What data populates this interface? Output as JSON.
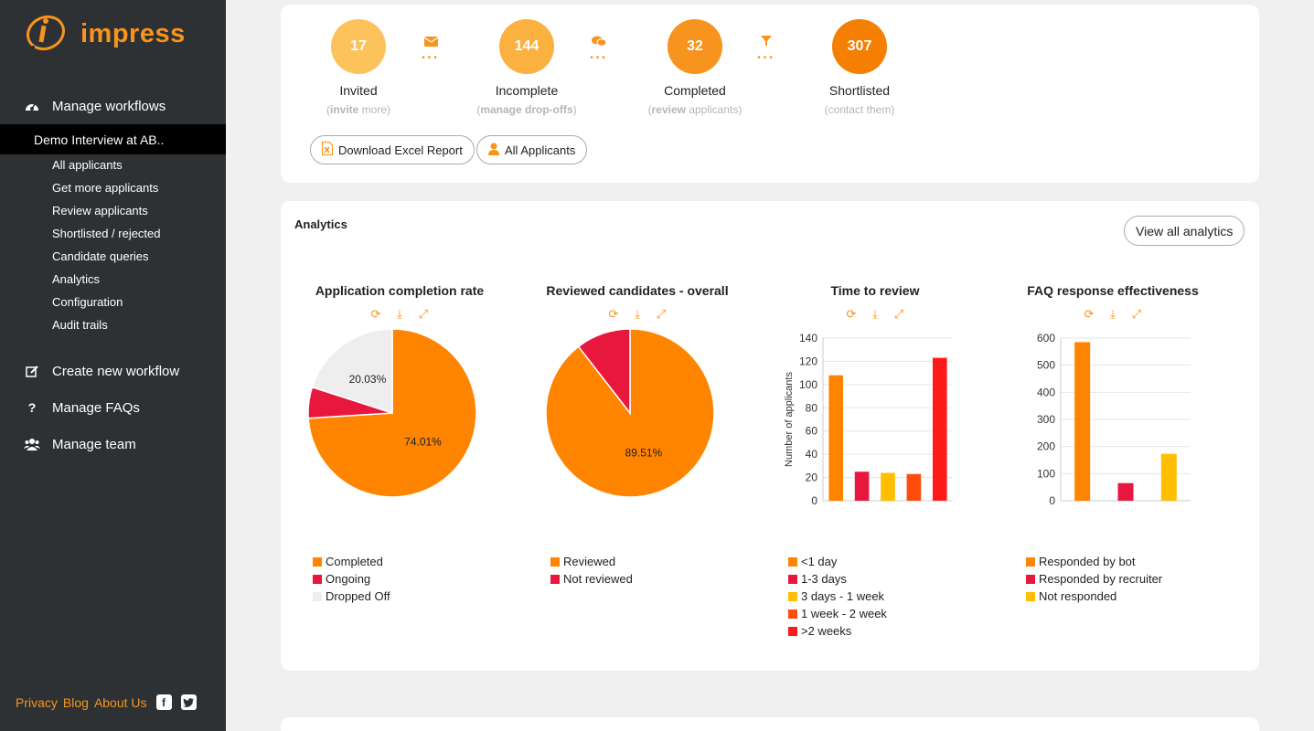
{
  "app": {
    "name": "impress"
  },
  "sidebar": {
    "manage_workflows": "Manage workflows",
    "active_workflow": "Demo Interview at AB..",
    "sub_items": [
      "All applicants",
      "Get more applicants",
      "Review applicants",
      "Shortlisted / rejected",
      "Candidate queries",
      "Analytics",
      "Configuration",
      "Audit trails"
    ],
    "create_workflow": "Create new workflow",
    "manage_faqs": "Manage FAQs",
    "manage_faqs_icon_char": "?",
    "manage_team": "Manage team",
    "footer": {
      "privacy": "Privacy",
      "blog": "Blog",
      "about": "About Us"
    }
  },
  "stats": [
    {
      "value": "17",
      "label": "Invited",
      "sub_bold": "invite",
      "sub_rest": " more",
      "color": "#fcc25b"
    },
    {
      "value": "144",
      "label": "Incomplete",
      "sub_bold": "manage drop-offs",
      "sub_rest": "",
      "color": "#fbb040"
    },
    {
      "value": "32",
      "label": "Completed",
      "sub_bold": "review",
      "sub_rest": " applicants",
      "color": "#f7941d"
    },
    {
      "value": "307",
      "label": "Shortlisted",
      "sub_bold": "",
      "sub_rest": "contact them",
      "color": "#f57f00"
    }
  ],
  "stat_separators": [
    "envelope-icon",
    "comments-icon",
    "filter-icon"
  ],
  "actions": {
    "download_report": "Download Excel Report",
    "all_applicants": "All Applicants"
  },
  "analytics": {
    "title": "Analytics",
    "view_all": "View all analytics"
  },
  "colors": {
    "orange": "#ff8400",
    "crimson": "#e8173e",
    "light_gray": "#eeeeee",
    "yellow": "#ffbf00",
    "red_orange": "#ff4c0c",
    "red": "#ff1a1a"
  },
  "chart_data": [
    {
      "type": "pie",
      "title": "Application completion rate",
      "labels": [
        "Completed",
        "Ongoing",
        "Dropped Off"
      ],
      "values": [
        74.01,
        5.96,
        20.03
      ],
      "value_labels": [
        "74.01%",
        "",
        "20.03%"
      ],
      "colors": [
        "#ff8400",
        "#e8173e",
        "#eeeeee"
      ]
    },
    {
      "type": "pie",
      "title": "Reviewed candidates - overall",
      "labels": [
        "Reviewed",
        "Not reviewed"
      ],
      "values": [
        89.51,
        10.49
      ],
      "value_labels": [
        "89.51%",
        ""
      ],
      "colors": [
        "#ff8400",
        "#e8173e"
      ]
    },
    {
      "type": "bar",
      "title": "Time to review",
      "categories": [
        "<1 day",
        "1-3 days",
        "3 days - 1 week",
        "1 week - 2 week",
        ">2 weeks"
      ],
      "values": [
        108,
        25,
        24,
        23,
        123
      ],
      "colors": [
        "#ff8400",
        "#e8173e",
        "#ffbf00",
        "#ff4c0c",
        "#ff1a1a"
      ],
      "ylabel": "Number of applicants",
      "ylim": [
        0,
        140
      ],
      "yticks": [
        "0",
        "20",
        "40",
        "60",
        "80",
        "100",
        "120",
        "140"
      ]
    },
    {
      "type": "bar",
      "title": "FAQ response effectiveness",
      "categories": [
        "Responded by bot",
        "Responded by recruiter",
        "Not responded"
      ],
      "values": [
        585,
        65,
        173
      ],
      "colors": [
        "#ff8400",
        "#e8173e",
        "#ffbf00"
      ],
      "ylabel": "",
      "ylim": [
        0,
        600
      ],
      "yticks": [
        "0",
        "100",
        "200",
        "300",
        "400",
        "500",
        "600"
      ]
    }
  ]
}
